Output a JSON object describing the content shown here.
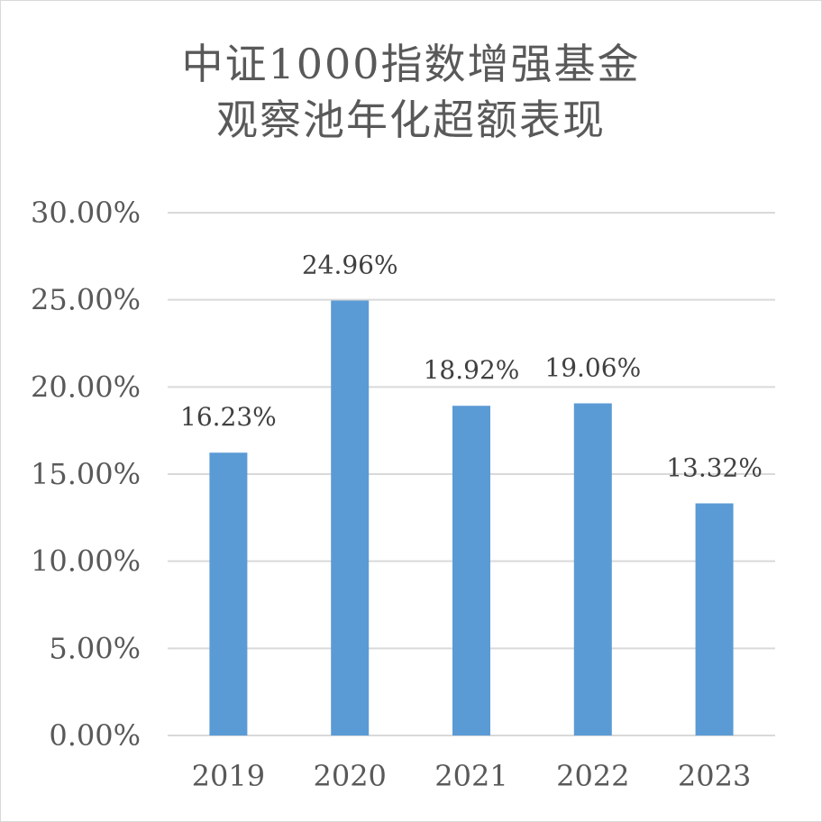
{
  "chart_data": {
    "type": "bar",
    "title_lines": [
      "中证1000指数增强基金",
      "观察池年化超额表现"
    ],
    "categories": [
      "2019",
      "2020",
      "2021",
      "2022",
      "2023"
    ],
    "values": [
      16.23,
      24.96,
      18.92,
      19.06,
      13.32
    ],
    "data_labels": [
      "16.23%",
      "24.96%",
      "18.92%",
      "19.06%",
      "13.32%"
    ],
    "y_ticks": [
      0,
      5,
      10,
      15,
      20,
      25,
      30
    ],
    "y_tick_labels": [
      "0.00%",
      "5.00%",
      "10.00%",
      "15.00%",
      "20.00%",
      "25.00%",
      "30.00%"
    ],
    "ylim": [
      0,
      30
    ],
    "grid": true,
    "legend": "none",
    "bar_color": "#5b9bd5",
    "grid_color": "#d9d9d9"
  }
}
